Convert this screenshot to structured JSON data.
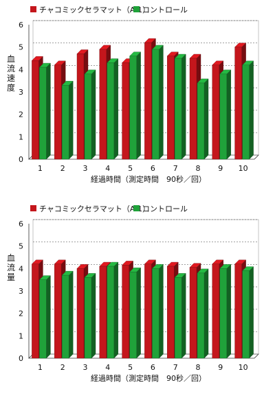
{
  "chart_data": [
    {
      "type": "bar",
      "categories": [
        "1",
        "2",
        "3",
        "4",
        "5",
        "6",
        "7",
        "8",
        "9",
        "10"
      ],
      "series": [
        {
          "name": "チャコミックセラマット（A-1）",
          "values": [
            4.4,
            4.2,
            4.7,
            4.9,
            4.3,
            5.2,
            4.6,
            4.5,
            4.2,
            5.0
          ]
        },
        {
          "name": "コントロール",
          "values": [
            4.1,
            3.3,
            3.8,
            4.3,
            4.6,
            4.9,
            4.5,
            3.4,
            3.8,
            4.2
          ]
        }
      ],
      "xlabel": "経過時間（測定時間　90秒／回）",
      "ylabel": "血流速度",
      "yticks": [
        "0",
        "1",
        "2",
        "3",
        "4",
        "5",
        "6"
      ],
      "ylim": [
        0,
        6
      ],
      "colors": [
        "#c4161c",
        "#20a23a"
      ],
      "legend_position": "top-left"
    },
    {
      "type": "bar",
      "categories": [
        "1",
        "2",
        "3",
        "4",
        "5",
        "6",
        "7",
        "8",
        "9",
        "10"
      ],
      "series": [
        {
          "name": "チャコミックセラマット（A-1）",
          "values": [
            4.2,
            4.2,
            4.0,
            4.1,
            4.15,
            4.2,
            4.1,
            4.05,
            4.2,
            4.2
          ]
        },
        {
          "name": "コントロール",
          "values": [
            3.5,
            3.7,
            3.6,
            4.1,
            3.85,
            4.0,
            3.6,
            3.8,
            4.0,
            3.9
          ]
        }
      ],
      "xlabel": "経過時間（測定時間　90秒／回）",
      "ylabel": "血流量",
      "yticks": [
        "0",
        "1",
        "2",
        "3",
        "4",
        "5",
        "6"
      ],
      "ylim": [
        0,
        6
      ],
      "colors": [
        "#c4161c",
        "#20a23a"
      ],
      "legend_position": "top-left"
    }
  ]
}
